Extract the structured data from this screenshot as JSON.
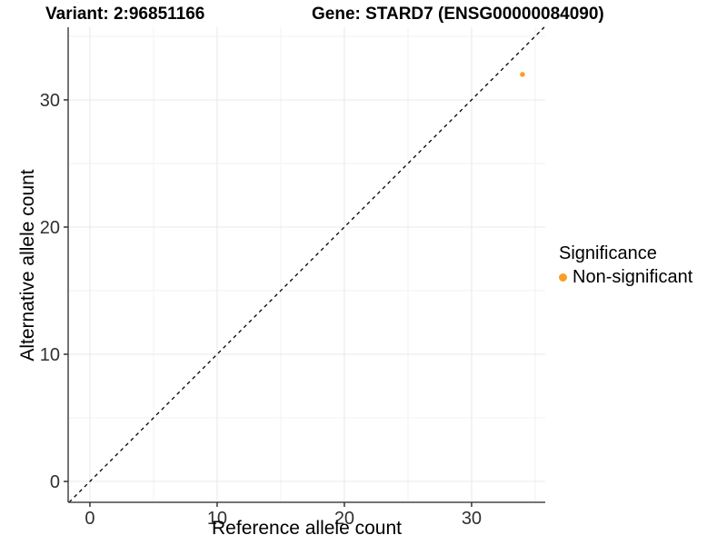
{
  "chart_data": {
    "type": "scatter",
    "titles": {
      "variant": "Variant: 2:96851166",
      "gene": "Gene: STARD7 (ENSG00000084090)"
    },
    "xlabel": "Reference allele count",
    "ylabel": "Alternative allele count",
    "xlim": [
      -1.71,
      35.79
    ],
    "ylim": [
      -1.64,
      35.71
    ],
    "x_major_ticks": [
      0,
      10,
      20,
      30
    ],
    "y_major_ticks": [
      0,
      10,
      20,
      30
    ],
    "x_minor_ticks": [
      5,
      15,
      25,
      35
    ],
    "y_minor_ticks": [
      5,
      15,
      25,
      35
    ],
    "grid": "major+minor, light gray on white",
    "identity_line": {
      "type": "y=x",
      "style": "dashed",
      "color": "#000000"
    },
    "series": [
      {
        "name": "Non-significant",
        "color": "#FA9E28",
        "points": [
          {
            "x": 34,
            "y": 32
          }
        ]
      }
    ],
    "legend": {
      "title": "Significance",
      "position": "right",
      "items": [
        {
          "label": "Non-significant",
          "color": "#FA9E28"
        }
      ]
    },
    "colors": {
      "background": "#FFFFFF",
      "grid_major": "#E8E8E8",
      "grid_minor": "#F2F2F2",
      "axis_line": "#474747",
      "tick_mark": "#333333",
      "tick_label": "#303030",
      "title_text": "#000000"
    }
  }
}
